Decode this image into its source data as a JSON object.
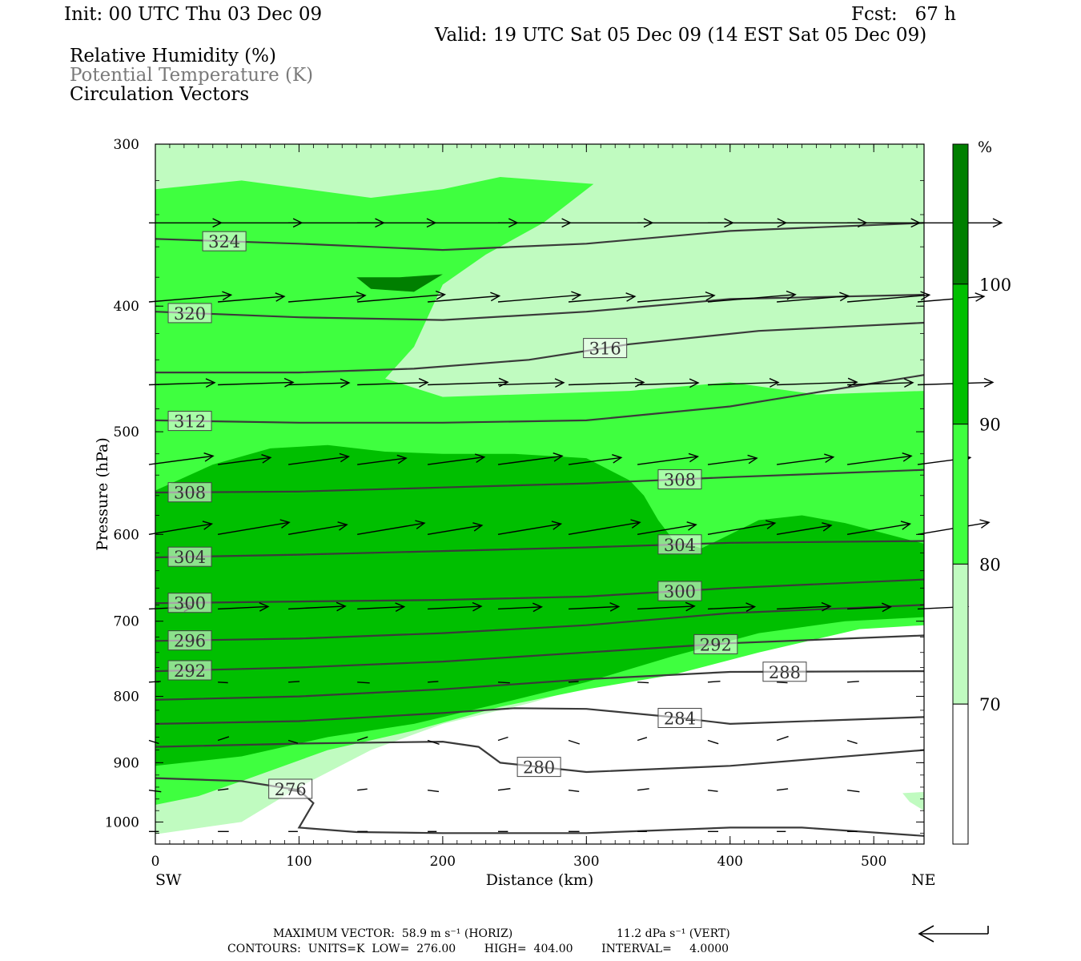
{
  "header": {
    "init": "Init: 00 UTC Thu 03 Dec 09",
    "fcst": "Fcst:   67 h",
    "valid": "Valid: 19 UTC Sat 05 Dec 09 (14 EST Sat 05 Dec 09)",
    "fields": [
      "Relative Humidity (%)",
      "Potential Temperature (K)",
      "Circulation Vectors"
    ]
  },
  "colors": {
    "rh70": "#c0fbc0",
    "rh80": "#3fff3f",
    "rh90": "#00bf00",
    "rh100": "#007f00",
    "theta_line": "#3a3a3a",
    "potential_temperature_label": "#7a7a7a"
  },
  "footer": {
    "max_vector": "MAXIMUM VECTOR:  58.9 m s⁻¹ (HORIZ)",
    "max_vert": "11.2 dPa s⁻¹ (VERT)",
    "contours": "CONTOURS:  UNITS=K  LOW=  276.00        HIGH=  404.00        INTERVAL=     4.0000"
  },
  "chart_data": {
    "type": "contour",
    "xlabel": "Distance (km)",
    "ylabel": "Pressure (hPa)",
    "xlim": [
      0,
      535
    ],
    "ylim": [
      1040,
      300
    ],
    "y_scale": "log",
    "x_ticks": [
      "0",
      "100",
      "200",
      "300",
      "400",
      "500"
    ],
    "y_ticks": [
      "300",
      "400",
      "500",
      "600",
      "700",
      "800",
      "900",
      "1000"
    ],
    "x_ends": {
      "left": "SW",
      "right": "NE"
    },
    "colorbar": {
      "unit": "%",
      "levels": [
        70,
        80,
        90,
        100
      ],
      "labels": [
        "70",
        "80",
        "90",
        "100"
      ]
    },
    "rh_fill": [
      {
        "level": 70,
        "poly": [
          [
            0,
            300
          ],
          [
            35,
            300
          ],
          [
            110,
            300
          ],
          [
            270,
            300
          ],
          [
            535,
            300
          ],
          [
            535,
            695
          ],
          [
            520,
            690
          ],
          [
            480,
            700
          ],
          [
            420,
            715
          ],
          [
            380,
            730
          ],
          [
            320,
            775
          ],
          [
            260,
            810
          ],
          [
            200,
            840
          ],
          [
            150,
            880
          ],
          [
            100,
            940
          ],
          [
            60,
            1000
          ],
          [
            0,
            1022
          ]
        ]
      },
      {
        "level": 80,
        "poly": [
          [
            0,
            325
          ],
          [
            60,
            320
          ],
          [
            150,
            330
          ],
          [
            200,
            325
          ],
          [
            240,
            318
          ],
          [
            305,
            322
          ],
          [
            270,
            345
          ],
          [
            230,
            365
          ],
          [
            200,
            385
          ],
          [
            180,
            430
          ],
          [
            160,
            455
          ],
          [
            200,
            470
          ],
          [
            330,
            465
          ],
          [
            400,
            458
          ],
          [
            460,
            468
          ],
          [
            535,
            465
          ],
          [
            535,
            705
          ],
          [
            490,
            710
          ],
          [
            420,
            740
          ],
          [
            360,
            770
          ],
          [
            300,
            790
          ],
          [
            240,
            815
          ],
          [
            180,
            850
          ],
          [
            120,
            880
          ],
          [
            60,
            930
          ],
          [
            30,
            955
          ],
          [
            0,
            970
          ]
        ]
      },
      {
        "level": 90,
        "poly": [
          [
            0,
            555
          ],
          [
            40,
            530
          ],
          [
            80,
            515
          ],
          [
            120,
            512
          ],
          [
            160,
            518
          ],
          [
            200,
            520
          ],
          [
            250,
            520
          ],
          [
            300,
            524
          ],
          [
            330,
            545
          ],
          [
            340,
            560
          ],
          [
            350,
            585
          ],
          [
            360,
            605
          ],
          [
            380,
            615
          ],
          [
            400,
            600
          ],
          [
            420,
            585
          ],
          [
            450,
            580
          ],
          [
            480,
            588
          ],
          [
            510,
            600
          ],
          [
            535,
            610
          ],
          [
            535,
            695
          ],
          [
            480,
            700
          ],
          [
            420,
            715
          ],
          [
            360,
            745
          ],
          [
            300,
            780
          ],
          [
            240,
            810
          ],
          [
            180,
            840
          ],
          [
            120,
            860
          ],
          [
            60,
            890
          ],
          [
            0,
            905
          ]
        ]
      },
      {
        "level": 100,
        "poly": [
          [
            140,
            380
          ],
          [
            170,
            380
          ],
          [
            200,
            378
          ],
          [
            180,
            390
          ],
          [
            150,
            388
          ]
        ]
      },
      {
        "level": 70,
        "poly": [
          [
            520,
            950
          ],
          [
            535,
            948
          ],
          [
            535,
            980
          ],
          [
            525,
            965
          ]
        ]
      }
    ],
    "theta_contours": [
      {
        "value": 324,
        "label": "324",
        "pts": [
          [
            0,
            355
          ],
          [
            100,
            358
          ],
          [
            200,
            362
          ],
          [
            300,
            358
          ],
          [
            400,
            350
          ],
          [
            535,
            345
          ]
        ]
      },
      {
        "value": 320,
        "label": "320",
        "pts": [
          [
            0,
            404
          ],
          [
            100,
            408
          ],
          [
            200,
            410
          ],
          [
            300,
            404
          ],
          [
            400,
            395
          ],
          [
            535,
            392
          ]
        ]
      },
      {
        "value": 316,
        "label": "316",
        "pts": [
          [
            0,
            450
          ],
          [
            100,
            450
          ],
          [
            180,
            447
          ],
          [
            260,
            440
          ],
          [
            330,
            428
          ],
          [
            420,
            418
          ],
          [
            535,
            412
          ]
        ]
      },
      {
        "value": 312,
        "label": "312",
        "pts": [
          [
            0,
            490
          ],
          [
            100,
            492
          ],
          [
            200,
            492
          ],
          [
            300,
            490
          ],
          [
            400,
            478
          ],
          [
            535,
            452
          ]
        ]
      },
      {
        "value": 308,
        "label": "308",
        "pts": [
          [
            0,
            557
          ],
          [
            100,
            556
          ],
          [
            200,
            552
          ],
          [
            300,
            548
          ],
          [
            400,
            542
          ],
          [
            535,
            535
          ]
        ]
      },
      {
        "value": 304,
        "label": "304",
        "pts": [
          [
            0,
            625
          ],
          [
            100,
            622
          ],
          [
            200,
            618
          ],
          [
            300,
            614
          ],
          [
            400,
            609
          ],
          [
            535,
            607
          ]
        ]
      },
      {
        "value": 300,
        "label": "300",
        "pts": [
          [
            0,
            678
          ],
          [
            100,
            676
          ],
          [
            200,
            674
          ],
          [
            300,
            670
          ],
          [
            400,
            660
          ],
          [
            535,
            650
          ]
        ]
      },
      {
        "value": 296,
        "label": "296",
        "pts": [
          [
            0,
            725
          ],
          [
            100,
            722
          ],
          [
            200,
            715
          ],
          [
            300,
            705
          ],
          [
            400,
            690
          ],
          [
            535,
            680
          ]
        ]
      },
      {
        "value": 292,
        "label": "292",
        "pts": [
          [
            0,
            765
          ],
          [
            100,
            760
          ],
          [
            200,
            752
          ],
          [
            300,
            740
          ],
          [
            400,
            728
          ],
          [
            535,
            718
          ]
        ]
      },
      {
        "value": 288,
        "label": "288",
        "pts": [
          [
            0,
            805
          ],
          [
            100,
            800
          ],
          [
            200,
            790
          ],
          [
            300,
            776
          ],
          [
            400,
            766
          ],
          [
            535,
            765
          ]
        ]
      },
      {
        "value": 284,
        "label": "284",
        "pts": [
          [
            0,
            840
          ],
          [
            100,
            836
          ],
          [
            200,
            824
          ],
          [
            250,
            817
          ],
          [
            300,
            818
          ],
          [
            360,
            830
          ],
          [
            400,
            840
          ],
          [
            535,
            830
          ]
        ]
      },
      {
        "value": 280,
        "label": "280",
        "pts": [
          [
            0,
            875
          ],
          [
            100,
            870
          ],
          [
            200,
            867
          ],
          [
            225,
            875
          ],
          [
            240,
            900
          ],
          [
            300,
            915
          ],
          [
            400,
            905
          ],
          [
            535,
            880
          ]
        ]
      },
      {
        "value": 276,
        "label": "276",
        "pts": [
          [
            0,
            925
          ],
          [
            60,
            930
          ],
          [
            100,
            945
          ],
          [
            110,
            967
          ],
          [
            100,
            1010
          ],
          [
            140,
            1018
          ],
          [
            200,
            1020
          ],
          [
            300,
            1020
          ],
          [
            400,
            1010
          ],
          [
            450,
            1010
          ],
          [
            535,
            1025
          ]
        ]
      }
    ]
  }
}
